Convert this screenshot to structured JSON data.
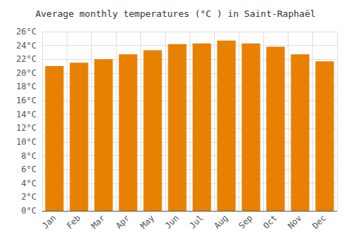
{
  "chart_data": {
    "type": "bar",
    "title": "Average monthly temperatures (°C ) in Saint-Raphaël",
    "categories": [
      "Jan",
      "Feb",
      "Mar",
      "Apr",
      "May",
      "Jun",
      "Jul",
      "Aug",
      "Sep",
      "Oct",
      "Nov",
      "Dec"
    ],
    "values": [
      21.0,
      21.5,
      22.0,
      22.7,
      23.3,
      24.2,
      24.3,
      24.7,
      24.3,
      23.8,
      22.7,
      21.7
    ],
    "color": "#E88000",
    "ylim": [
      0,
      26
    ],
    "yticks": [
      {
        "value": 0,
        "label": "0°C"
      },
      {
        "value": 2,
        "label": "2°C"
      },
      {
        "value": 4,
        "label": "4°C"
      },
      {
        "value": 6,
        "label": "6°C"
      },
      {
        "value": 8,
        "label": "8°C"
      },
      {
        "value": 10,
        "label": "10°C"
      },
      {
        "value": 12,
        "label": "12°C"
      },
      {
        "value": 14,
        "label": "14°C"
      },
      {
        "value": 16,
        "label": "16°C"
      },
      {
        "value": 18,
        "label": "18°C"
      },
      {
        "value": 20,
        "label": "20°C"
      },
      {
        "value": 22,
        "label": "22°C"
      },
      {
        "value": 24,
        "label": "24°C"
      },
      {
        "value": 26,
        "label": "26°C"
      }
    ],
    "grid": true
  }
}
